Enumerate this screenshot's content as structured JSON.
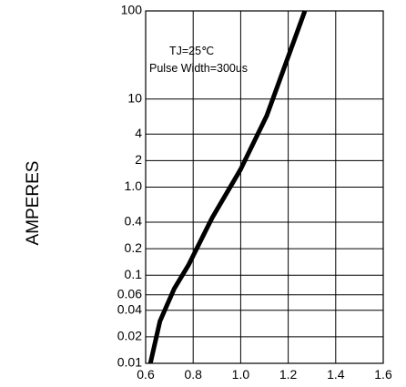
{
  "chart_data": {
    "type": "line",
    "title": "",
    "xlabel": "",
    "ylabel": "AMPERES",
    "x_scale": "linear",
    "y_scale": "log",
    "xlim": [
      0.6,
      1.6
    ],
    "ylim": [
      0.01,
      100
    ],
    "grid": true,
    "x_ticks": [
      "0.6",
      "0.8",
      "1.0",
      "1.2",
      "1.4",
      "1.6"
    ],
    "y_ticks": [
      {
        "value": 100,
        "label": "100"
      },
      {
        "value": 10,
        "label": "10"
      },
      {
        "value": 4,
        "label": "4"
      },
      {
        "value": 2,
        "label": "2"
      },
      {
        "value": 1,
        "label": "1.0"
      },
      {
        "value": 0.4,
        "label": "0.4"
      },
      {
        "value": 0.2,
        "label": "0.2"
      },
      {
        "value": 0.1,
        "label": "0.1"
      },
      {
        "value": 0.06,
        "label": "0.06"
      },
      {
        "value": 0.04,
        "label": "0.04"
      },
      {
        "value": 0.02,
        "label": "0.02"
      },
      {
        "value": 0.01,
        "label": "0.01"
      }
    ],
    "annotations": [
      "TJ=25℃",
      "Pulse Width=300us"
    ],
    "series": [
      {
        "x": [
          0.62,
          0.66,
          0.72,
          0.78,
          0.88,
          1.0,
          1.11,
          1.27
        ],
        "y": [
          0.01,
          0.03,
          0.07,
          0.13,
          0.45,
          1.6,
          6.5,
          100
        ],
        "color": "#000000"
      }
    ]
  }
}
